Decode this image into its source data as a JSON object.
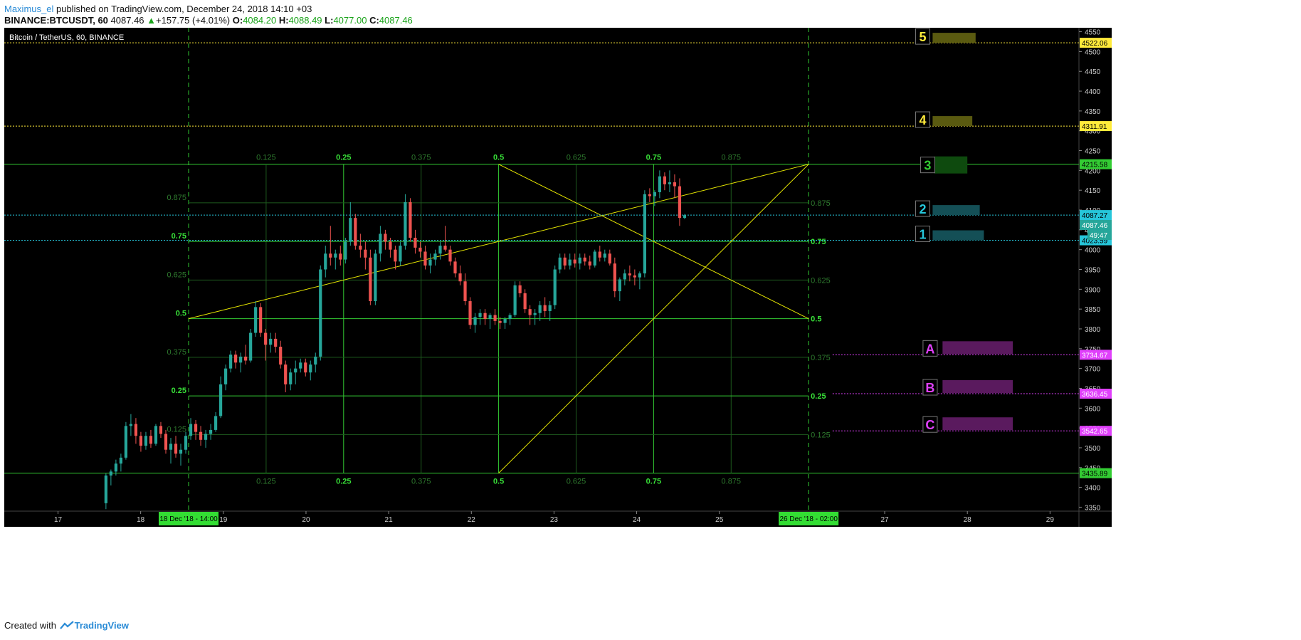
{
  "header": {
    "author": "Maximus_el",
    "published_text": "published on TradingView.com, December 24, 2018 14:10 +03",
    "symbol": "BINANCE:BTCUSDT, 60",
    "last": "4087.46",
    "change_arrow": "▲",
    "change": "+157.75 (+4.01%)",
    "o_label": "O:",
    "o_value": "4084.20",
    "h_label": "H:",
    "h_value": "4088.49",
    "l_label": "L:",
    "l_value": "4077.00",
    "c_label": "C:",
    "c_value": "4087.46"
  },
  "footer": {
    "created_with": "Created with",
    "brand": "TradingView"
  },
  "chart_data": {
    "type": "candlestick",
    "title": "Bitcoin / TetherUS, 60, BINANCE",
    "x_range": [
      16.35,
      29.35
    ],
    "y_range": [
      3340,
      4560
    ],
    "x_ticks": [
      {
        "label": "17",
        "x": 17
      },
      {
        "label": "18",
        "x": 18
      },
      {
        "label": "19",
        "x": 19
      },
      {
        "label": "20",
        "x": 20
      },
      {
        "label": "21",
        "x": 21
      },
      {
        "label": "22",
        "x": 22
      },
      {
        "label": "23",
        "x": 23
      },
      {
        "label": "24",
        "x": 24
      },
      {
        "label": "25",
        "x": 25
      },
      {
        "label": "27",
        "x": 27
      },
      {
        "label": "28",
        "x": 28
      },
      {
        "label": "29",
        "x": 29
      }
    ],
    "y_ticks": [
      3350,
      3400,
      3450,
      3500,
      3550,
      3600,
      3650,
      3700,
      3750,
      3800,
      3850,
      3900,
      3950,
      4000,
      4050,
      4100,
      4150,
      4200,
      4250,
      4300,
      4350,
      4400,
      4450,
      4500,
      4550
    ],
    "candles_ohlc": [
      [
        3360,
        3435,
        3345,
        3430
      ],
      [
        3430,
        3445,
        3405,
        3440
      ],
      [
        3440,
        3470,
        3430,
        3460
      ],
      [
        3460,
        3485,
        3440,
        3475
      ],
      [
        3475,
        3565,
        3470,
        3555
      ],
      [
        3555,
        3585,
        3530,
        3560
      ],
      [
        3560,
        3575,
        3510,
        3530
      ],
      [
        3530,
        3540,
        3490,
        3505
      ],
      [
        3505,
        3540,
        3495,
        3530
      ],
      [
        3530,
        3545,
        3500,
        3510
      ],
      [
        3510,
        3560,
        3505,
        3555
      ],
      [
        3555,
        3565,
        3525,
        3535
      ],
      [
        3535,
        3545,
        3485,
        3495
      ],
      [
        3495,
        3525,
        3460,
        3510
      ],
      [
        3510,
        3530,
        3475,
        3485
      ],
      [
        3485,
        3510,
        3455,
        3495
      ],
      [
        3495,
        3540,
        3485,
        3530
      ],
      [
        3530,
        3575,
        3520,
        3560
      ],
      [
        3560,
        3570,
        3520,
        3540
      ],
      [
        3540,
        3555,
        3505,
        3520
      ],
      [
        3520,
        3545,
        3500,
        3535
      ],
      [
        3535,
        3560,
        3520,
        3545
      ],
      [
        3545,
        3590,
        3540,
        3580
      ],
      [
        3580,
        3680,
        3575,
        3660
      ],
      [
        3660,
        3710,
        3645,
        3700
      ],
      [
        3700,
        3745,
        3690,
        3735
      ],
      [
        3735,
        3745,
        3700,
        3715
      ],
      [
        3715,
        3740,
        3690,
        3730
      ],
      [
        3730,
        3760,
        3710,
        3720
      ],
      [
        3720,
        3800,
        3715,
        3790
      ],
      [
        3790,
        3870,
        3780,
        3855
      ],
      [
        3855,
        3865,
        3780,
        3790
      ],
      [
        3790,
        3800,
        3720,
        3760
      ],
      [
        3760,
        3790,
        3740,
        3775
      ],
      [
        3775,
        3790,
        3740,
        3755
      ],
      [
        3755,
        3770,
        3700,
        3710
      ],
      [
        3710,
        3720,
        3640,
        3660
      ],
      [
        3660,
        3700,
        3645,
        3690
      ],
      [
        3690,
        3720,
        3660,
        3700
      ],
      [
        3700,
        3725,
        3690,
        3715
      ],
      [
        3715,
        3725,
        3680,
        3690
      ],
      [
        3690,
        3720,
        3670,
        3710
      ],
      [
        3710,
        3740,
        3690,
        3730
      ],
      [
        3730,
        3960,
        3720,
        3950
      ],
      [
        3950,
        4010,
        3930,
        3990
      ],
      [
        3990,
        4060,
        3960,
        3980
      ],
      [
        3980,
        4000,
        3950,
        3990
      ],
      [
        3990,
        4010,
        3960,
        3975
      ],
      [
        3975,
        4030,
        3965,
        4020
      ],
      [
        4020,
        4120,
        4010,
        4080
      ],
      [
        4080,
        4090,
        4000,
        4010
      ],
      [
        4010,
        4040,
        3980,
        4000
      ],
      [
        4000,
        4020,
        3950,
        3980
      ],
      [
        3980,
        4000,
        3860,
        3870
      ],
      [
        3870,
        4000,
        3860,
        3990
      ],
      [
        3990,
        4060,
        3970,
        4040
      ],
      [
        4040,
        4050,
        4000,
        4020
      ],
      [
        4020,
        4030,
        3980,
        4000
      ],
      [
        4000,
        4010,
        3950,
        3970
      ],
      [
        3970,
        4020,
        3960,
        4010
      ],
      [
        4010,
        4140,
        4000,
        4120
      ],
      [
        4120,
        4130,
        4020,
        4030
      ],
      [
        4030,
        4050,
        3990,
        4005
      ],
      [
        4005,
        4020,
        3980,
        3995
      ],
      [
        3995,
        4010,
        3950,
        3960
      ],
      [
        3960,
        3990,
        3940,
        3975
      ],
      [
        3975,
        4000,
        3960,
        3990
      ],
      [
        3990,
        4020,
        3975,
        4010
      ],
      [
        4010,
        4060,
        3995,
        4000
      ],
      [
        4000,
        4010,
        3960,
        3970
      ],
      [
        3970,
        3980,
        3930,
        3940
      ],
      [
        3940,
        3960,
        3910,
        3920
      ],
      [
        3920,
        3940,
        3860,
        3870
      ],
      [
        3870,
        3880,
        3800,
        3810
      ],
      [
        3810,
        3840,
        3790,
        3830
      ],
      [
        3830,
        3850,
        3810,
        3840
      ],
      [
        3840,
        3850,
        3810,
        3825
      ],
      [
        3825,
        3840,
        3800,
        3835
      ],
      [
        3835,
        3850,
        3810,
        3820
      ],
      [
        3820,
        3830,
        3800,
        3815
      ],
      [
        3815,
        3830,
        3800,
        3825
      ],
      [
        3825,
        3840,
        3810,
        3835
      ],
      [
        3835,
        3920,
        3830,
        3910
      ],
      [
        3910,
        3920,
        3880,
        3890
      ],
      [
        3890,
        3900,
        3840,
        3850
      ],
      [
        3850,
        3860,
        3810,
        3835
      ],
      [
        3835,
        3850,
        3810,
        3840
      ],
      [
        3840,
        3870,
        3820,
        3860
      ],
      [
        3860,
        3880,
        3830,
        3845
      ],
      [
        3845,
        3870,
        3820,
        3860
      ],
      [
        3860,
        3960,
        3850,
        3950
      ],
      [
        3950,
        3990,
        3940,
        3980
      ],
      [
        3980,
        3990,
        3950,
        3960
      ],
      [
        3960,
        3990,
        3950,
        3975
      ],
      [
        3975,
        3990,
        3955,
        3965
      ],
      [
        3965,
        3990,
        3950,
        3980
      ],
      [
        3980,
        3990,
        3960,
        3970
      ],
      [
        3970,
        3985,
        3950,
        3960
      ],
      [
        3960,
        4000,
        3955,
        3995
      ],
      [
        3995,
        4010,
        3970,
        3980
      ],
      [
        3980,
        4000,
        3970,
        3990
      ],
      [
        3990,
        4000,
        3960,
        3965
      ],
      [
        3965,
        3980,
        3880,
        3895
      ],
      [
        3895,
        3930,
        3870,
        3925
      ],
      [
        3925,
        3950,
        3910,
        3940
      ],
      [
        3940,
        3960,
        3920,
        3935
      ],
      [
        3935,
        3950,
        3910,
        3930
      ],
      [
        3930,
        3945,
        3900,
        3940
      ],
      [
        3940,
        4150,
        3930,
        4140
      ],
      [
        4140,
        4155,
        4120,
        4135
      ],
      [
        4135,
        4150,
        4110,
        4145
      ],
      [
        4145,
        4200,
        4130,
        4185
      ],
      [
        4185,
        4195,
        4150,
        4165
      ],
      [
        4165,
        4200,
        4145,
        4170
      ],
      [
        4170,
        4190,
        4130,
        4160
      ],
      [
        4160,
        4180,
        4060,
        4080
      ],
      [
        4080,
        4090,
        4077,
        4087
      ]
    ],
    "fib_box": {
      "time_start": "18 Dec '18 - 14:00",
      "time_end": "26 Dec '18 - 02:00",
      "x0": 18.58,
      "x1": 26.08,
      "price_low": 3435.89,
      "price_high": 4215.58,
      "time_levels": [
        "0.125",
        "0.25",
        "0.375",
        "0.5",
        "0.625",
        "0.75",
        "0.875"
      ],
      "price_levels": [
        "0.125",
        "0.25",
        "0.375",
        "0.5",
        "0.625",
        "0.75",
        "0.875"
      ]
    },
    "price_lines": [
      {
        "price": 4522.06,
        "color": "#ffeb3b",
        "label": "4522.06",
        "marker": "5"
      },
      {
        "price": 4311.91,
        "color": "#ffeb3b",
        "label": "4311.91",
        "marker": "4"
      },
      {
        "price": 4087.27,
        "color": "#26c6da",
        "label": "4087.27",
        "marker": "2"
      },
      {
        "price": 4023.59,
        "color": "#26c6da",
        "label": "4023.59",
        "marker": "1"
      },
      {
        "price": 3734.67,
        "color": "#e040fb",
        "label": "3734.67",
        "marker": "A"
      },
      {
        "price": 3636.45,
        "color": "#e040fb",
        "label": "3636.45",
        "marker": "B"
      },
      {
        "price": 3542.65,
        "color": "#e040fb",
        "label": "3542.65",
        "marker": "C"
      }
    ],
    "fib_price_labels": [
      {
        "price": 4215.58,
        "label": "4215.58",
        "marker": "3"
      },
      {
        "price": 3435.89,
        "label": "3435.89"
      }
    ],
    "last_price_label": "4087.46",
    "countdown_label": "49:47",
    "colors": {
      "background": "#000000",
      "up": "#26a69a",
      "down": "#ef5350",
      "fib": "#33cc33",
      "fan": "#e6e600",
      "axis_text": "#cfcfcf"
    }
  }
}
